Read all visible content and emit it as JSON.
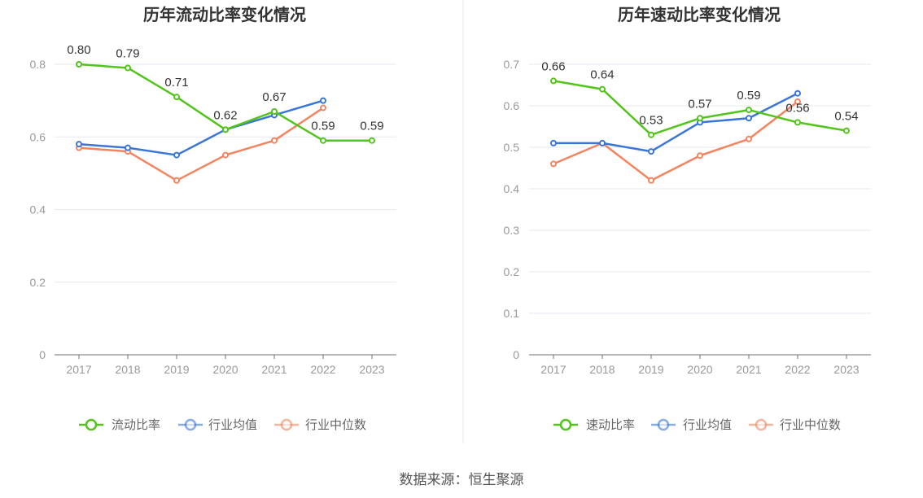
{
  "source_label": "数据来源：恒生聚源",
  "chart_data": [
    {
      "type": "line",
      "title": "历年流动比率变化情况",
      "categories": [
        "2017",
        "2018",
        "2019",
        "2020",
        "2021",
        "2022",
        "2023"
      ],
      "ylim": [
        0,
        0.8
      ],
      "yticks": [
        0,
        0.2,
        0.4,
        0.6,
        0.8
      ],
      "ytick_labels": [
        "0",
        "0.2",
        "0.4",
        "0.6",
        "0.8"
      ],
      "grid": true,
      "legend_position": "bottom",
      "series": [
        {
          "name": "流动比率",
          "color": "#52c41a",
          "values": [
            0.8,
            0.79,
            0.71,
            0.62,
            0.67,
            0.59,
            0.59
          ],
          "show_labels": true
        },
        {
          "name": "行业均值",
          "color": "#3a76d8",
          "values": [
            0.58,
            0.57,
            0.55,
            0.62,
            0.66,
            0.7,
            null
          ],
          "show_labels": false
        },
        {
          "name": "行业中位数",
          "color": "#f4845f",
          "values": [
            0.57,
            0.56,
            0.48,
            0.55,
            0.59,
            0.68,
            null
          ],
          "show_labels": false
        }
      ]
    },
    {
      "type": "line",
      "title": "历年速动比率变化情况",
      "categories": [
        "2017",
        "2018",
        "2019",
        "2020",
        "2021",
        "2022",
        "2023"
      ],
      "ylim": [
        0,
        0.7
      ],
      "yticks": [
        0,
        0.1,
        0.2,
        0.3,
        0.4,
        0.5,
        0.6,
        0.7
      ],
      "ytick_labels": [
        "0",
        "0.1",
        "0.2",
        "0.3",
        "0.4",
        "0.5",
        "0.6",
        "0.7"
      ],
      "grid": true,
      "legend_position": "bottom",
      "series": [
        {
          "name": "速动比率",
          "color": "#52c41a",
          "values": [
            0.66,
            0.64,
            0.53,
            0.57,
            0.59,
            0.56,
            0.54
          ],
          "show_labels": true
        },
        {
          "name": "行业均值",
          "color": "#3a76d8",
          "values": [
            0.51,
            0.51,
            0.49,
            0.56,
            0.57,
            0.63,
            null
          ],
          "show_labels": false
        },
        {
          "name": "行业中位数",
          "color": "#f4845f",
          "values": [
            0.46,
            0.51,
            0.42,
            0.48,
            0.52,
            0.61,
            null
          ],
          "show_labels": false
        }
      ]
    }
  ]
}
